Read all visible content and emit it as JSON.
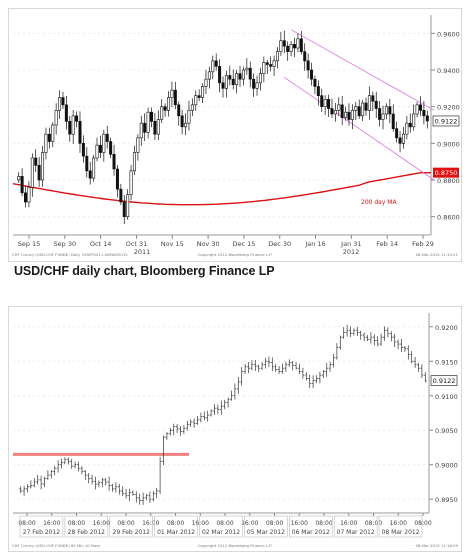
{
  "caption": "USD/CHF daily chart, Bloomberg Finance LP",
  "chart_data": [
    {
      "type": "candlestick",
      "ylim": [
        0.85,
        0.97
      ],
      "yticks": [
        0.86,
        0.88,
        0.9,
        0.92,
        0.94,
        0.96
      ],
      "ytick_labels": [
        "0.8600",
        "0.8800",
        "0.9000",
        "0.9200",
        "0.9400",
        "0.9600"
      ],
      "xticks": [
        "Sep 15",
        "Sep 30",
        "Oct 14",
        "Oct 31",
        "Nov 15",
        "Nov 30",
        "Dec 15",
        "Dec 30",
        "Jan 16",
        "Jan 31",
        "Feb 14",
        "Feb 29"
      ],
      "year_labels": [
        "2011",
        "2012"
      ],
      "last_price": 0.9122,
      "last_price_label": "0.9122",
      "ma_value_label": "0.8750",
      "ma_label": "200 day MA",
      "footer_left": "CHF Curncy (USD-CHF FVNDE) Daily 15SEP2011-08MAR2012",
      "footer_mid": "Copyright 2012 Bloomberg Finance L.P.",
      "footer_right": "08-Mar-2012 11:15:21",
      "ma_color": "#dd1111",
      "channel_color": "#e070e0",
      "closes": [
        0.882,
        0.873,
        0.868,
        0.876,
        0.892,
        0.888,
        0.88,
        0.895,
        0.905,
        0.901,
        0.91,
        0.918,
        0.925,
        0.921,
        0.912,
        0.905,
        0.915,
        0.912,
        0.9,
        0.893,
        0.885,
        0.881,
        0.892,
        0.899,
        0.895,
        0.905,
        0.901,
        0.894,
        0.886,
        0.875,
        0.868,
        0.86,
        0.872,
        0.885,
        0.895,
        0.903,
        0.911,
        0.906,
        0.917,
        0.912,
        0.905,
        0.913,
        0.92,
        0.918,
        0.925,
        0.929,
        0.921,
        0.915,
        0.909,
        0.911,
        0.918,
        0.921,
        0.926,
        0.925,
        0.931,
        0.935,
        0.939,
        0.945,
        0.942,
        0.933,
        0.93,
        0.937,
        0.935,
        0.932,
        0.938,
        0.935,
        0.94,
        0.941,
        0.935,
        0.93,
        0.933,
        0.938,
        0.944,
        0.943,
        0.942,
        0.945,
        0.95,
        0.956,
        0.953,
        0.95,
        0.954,
        0.952,
        0.957,
        0.95,
        0.945,
        0.94,
        0.935,
        0.931,
        0.926,
        0.92,
        0.924,
        0.919,
        0.916,
        0.918,
        0.921,
        0.914,
        0.917,
        0.913,
        0.918,
        0.92,
        0.915,
        0.922,
        0.918,
        0.926,
        0.923,
        0.919,
        0.913,
        0.916,
        0.92,
        0.916,
        0.908,
        0.903,
        0.9,
        0.905,
        0.911,
        0.909,
        0.916,
        0.921,
        0.918,
        0.915,
        0.9122
      ]
    },
    {
      "type": "bar",
      "subtype": "ohlc-intraday",
      "ylim": [
        0.893,
        0.922
      ],
      "yticks": [
        0.895,
        0.9,
        0.905,
        0.91,
        0.915,
        0.92
      ],
      "ytick_labels": [
        "0.8950",
        "0.9000",
        "0.9050",
        "0.9100",
        "0.9150",
        "0.9200"
      ],
      "last_price": 0.9122,
      "last_price_label": "0.9122",
      "hline_level": 0.9015,
      "hline_color": "#f08080",
      "time_labels": [
        "08:00",
        "16:00",
        "08:00",
        "16:00",
        "08:00",
        "16:00",
        "08:00",
        "16:00",
        "08:00",
        "16:00",
        "08:00",
        "16:00",
        "08:00",
        "16:00",
        "08:00",
        "16:00",
        "08:00"
      ],
      "day_labels": [
        "27 Feb 2012",
        "28 Feb 2012",
        "29 Feb 2012",
        "01 Mar 2012",
        "02 Mar 2012",
        "05 Mar 2012",
        "06 Mar 2012",
        "07 Mar 2012",
        "08 Mar 2012"
      ],
      "footer_left": "CHF Curncy (USD-CHF FVNDE) 60 Min 10 Days",
      "footer_mid": "Copyright 2012 Bloomberg Finance L.P.",
      "footer_right": "08-Mar-2012 11:16:09",
      "closes": [
        0.8962,
        0.8965,
        0.8968,
        0.897,
        0.8975,
        0.8978,
        0.8972,
        0.898,
        0.8985,
        0.899,
        0.8995,
        0.9,
        0.9003,
        0.9008,
        0.9005,
        0.8998,
        0.9,
        0.8995,
        0.899,
        0.8985,
        0.898,
        0.8976,
        0.8972,
        0.8974,
        0.8978,
        0.8975,
        0.897,
        0.8965,
        0.8968,
        0.8962,
        0.8958,
        0.8955,
        0.896,
        0.8957,
        0.8952,
        0.8948,
        0.8952,
        0.8955,
        0.895,
        0.8958,
        0.8962,
        0.9005,
        0.904,
        0.9045,
        0.905,
        0.9055,
        0.9052,
        0.9048,
        0.9053,
        0.9058,
        0.9062,
        0.906,
        0.9065,
        0.907,
        0.9068,
        0.9072,
        0.9078,
        0.9082,
        0.908,
        0.9085,
        0.909,
        0.9095,
        0.91,
        0.911,
        0.912,
        0.9135,
        0.9142,
        0.914,
        0.9145,
        0.9143,
        0.914,
        0.9145,
        0.915,
        0.9148,
        0.9142,
        0.9138,
        0.9135,
        0.914,
        0.9145,
        0.9148,
        0.9144,
        0.914,
        0.9135,
        0.913,
        0.9125,
        0.9118,
        0.9122,
        0.9125,
        0.913,
        0.9135,
        0.914,
        0.9145,
        0.9155,
        0.917,
        0.9185,
        0.9192,
        0.9195,
        0.919,
        0.9195,
        0.9192,
        0.9188,
        0.9185,
        0.9182,
        0.9185,
        0.918,
        0.9175,
        0.9185,
        0.9195,
        0.919,
        0.9185,
        0.9178,
        0.9175,
        0.917,
        0.9168,
        0.916,
        0.915,
        0.9145,
        0.914,
        0.913,
        0.9122
      ]
    }
  ]
}
